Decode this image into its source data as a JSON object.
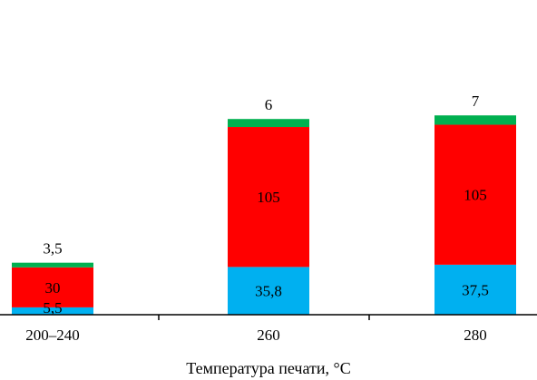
{
  "chart_data": {
    "type": "bar",
    "stacked": true,
    "categories": [
      "200–240",
      "260",
      "280"
    ],
    "series": [
      {
        "values": [
          5.5,
          35.8,
          37.5
        ],
        "labels": [
          "5,5",
          "35,8",
          "37,5"
        ],
        "color": "#00b0f0"
      },
      {
        "values": [
          30,
          105,
          105
        ],
        "labels": [
          "30",
          "105",
          "105"
        ],
        "color": "#ff0000"
      },
      {
        "values": [
          3.5,
          6,
          7
        ],
        "labels": [
          "3,5",
          "6",
          "7"
        ],
        "color": "#00b050"
      }
    ],
    "xlabel": "Температура печати, °C",
    "ylim": [
      0,
      150
    ],
    "grid": false
  }
}
